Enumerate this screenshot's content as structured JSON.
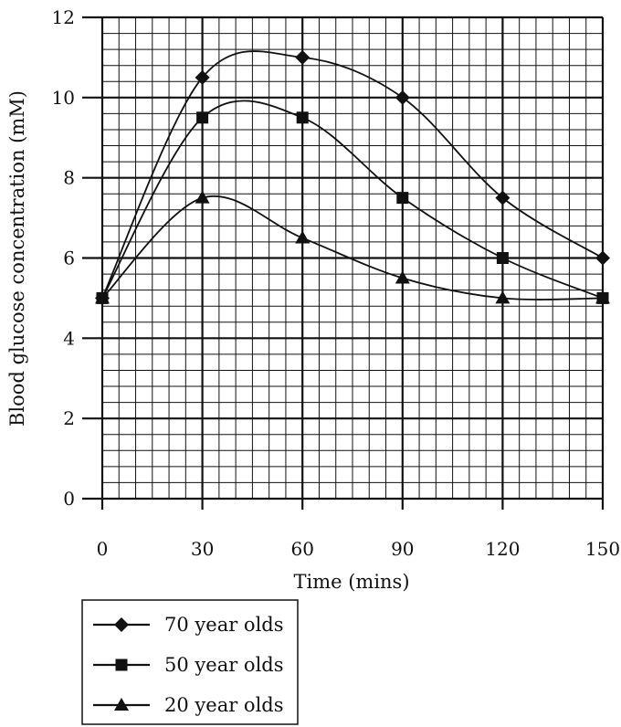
{
  "chart_data": {
    "type": "line",
    "xlabel": "Time (mins)",
    "ylabel": "Blood glucose concentration (mM)",
    "x": [
      0,
      30,
      60,
      90,
      120,
      150
    ],
    "xticks": [
      "0",
      "30",
      "60",
      "90",
      "120",
      "150"
    ],
    "yticks": [
      "0",
      "2",
      "4",
      "6",
      "8",
      "10",
      "12"
    ],
    "xlim": [
      0,
      150
    ],
    "ylim": [
      0,
      12
    ],
    "grid": true,
    "minor_grid": {
      "x_step": 5,
      "y_step": 0.4
    },
    "legend_position": "bottom-left, below plot",
    "series": [
      {
        "name": "70 year olds",
        "marker": "diamond",
        "values": [
          5,
          10.5,
          11,
          10,
          7.5,
          6
        ]
      },
      {
        "name": "50 year olds",
        "marker": "square",
        "values": [
          5,
          9.5,
          9.5,
          7.5,
          6,
          5
        ]
      },
      {
        "name": "20 year olds",
        "marker": "triangle",
        "values": [
          5,
          7.5,
          6.5,
          5.5,
          5,
          5
        ]
      }
    ],
    "colors": {
      "ink": "#111111",
      "background": "#ffffff"
    }
  }
}
